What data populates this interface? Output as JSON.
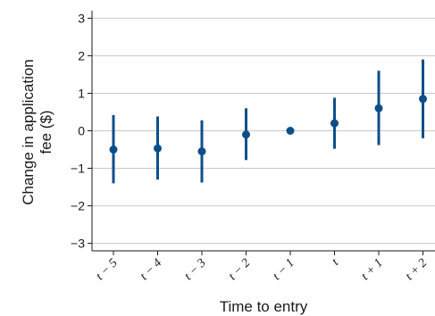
{
  "chart_data": {
    "type": "scatter",
    "xlabel": "Time to entry",
    "ylabel_lines": [
      "Change in application",
      "fee ($)"
    ],
    "categories": [
      "t − 5",
      "t − 4",
      "t − 3",
      "t − 2",
      "t − 1",
      "t",
      "t + 1",
      "t + 2"
    ],
    "values": [
      -0.5,
      -0.47,
      -0.55,
      -0.1,
      0.0,
      0.2,
      0.6,
      0.85
    ],
    "ci_low": [
      -1.4,
      -1.3,
      -1.38,
      -0.78,
      0.0,
      -0.48,
      -0.38,
      -0.2
    ],
    "ci_high": [
      0.42,
      0.38,
      0.28,
      0.6,
      0.0,
      0.88,
      1.6,
      1.9
    ],
    "ylim": [
      -3.2,
      3.2
    ],
    "yticks": [
      3,
      2,
      1,
      0,
      -1,
      -2,
      -3
    ],
    "ytick_labels": [
      "3",
      "2",
      "1",
      "0",
      "−1",
      "−2",
      "−3"
    ],
    "grid": true,
    "colors": {
      "series": "#0b4f8a",
      "grid": "#c8c8c8",
      "axis": "#1a1a1a"
    }
  }
}
